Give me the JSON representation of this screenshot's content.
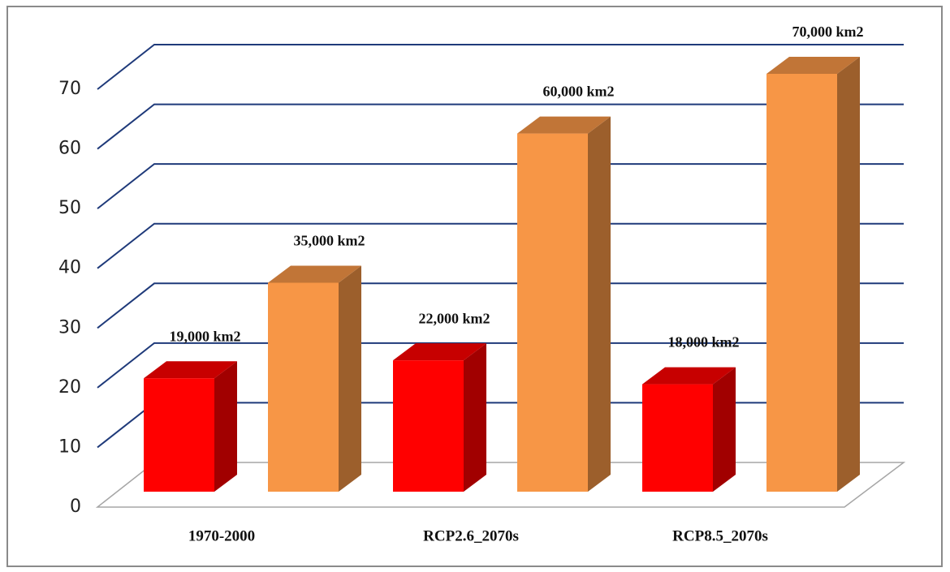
{
  "chart_data": {
    "type": "bar3d",
    "categories": [
      "1970-2000",
      "RCP2.6_2070s",
      "RCP8.5_2070s"
    ],
    "series": [
      {
        "color": "#ff0000",
        "values": [
          19,
          22,
          18
        ],
        "value_labels": [
          "19,000 km2",
          "22,000 km2",
          "18,000 km2"
        ]
      },
      {
        "color": "#f79646",
        "values": [
          35,
          60,
          70
        ],
        "value_labels": [
          "35,000 km2",
          "60,000 km2",
          "70,000 km2"
        ]
      }
    ],
    "ylim": [
      0,
      70
    ],
    "yticks": [
      0,
      10,
      20,
      30,
      40,
      50,
      60,
      70
    ],
    "grid": true
  }
}
